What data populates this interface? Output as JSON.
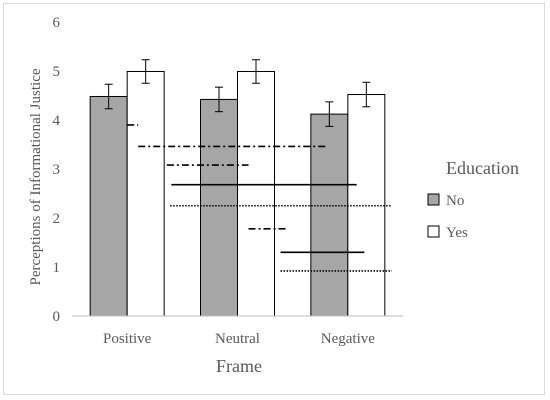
{
  "chart_data": {
    "type": "bar",
    "categories": [
      "Positive",
      "Neutral",
      "Negative"
    ],
    "series": [
      {
        "name": "No",
        "values": [
          4.48,
          4.42,
          4.12
        ],
        "errors": [
          0.25,
          0.25,
          0.25
        ],
        "color": "#a6a6a6"
      },
      {
        "name": "Yes",
        "values": [
          4.99,
          4.99,
          4.52
        ],
        "errors": [
          0.24,
          0.24,
          0.25
        ],
        "color": "#ffffff"
      }
    ],
    "ylabel": "Perceptions of Informational Justice",
    "xlabel": "Frame",
    "ylim": [
      0,
      6
    ],
    "yticks": [
      0,
      1,
      2,
      3,
      4,
      5,
      6
    ],
    "grid": false,
    "legend": {
      "title": "Education",
      "placement": "right"
    },
    "annotations": [
      {
        "style": "dash-dot",
        "from_x": 0.0,
        "to_x": 0.1,
        "y": 3.9
      },
      {
        "style": "dash-dot",
        "from_x": 0.1,
        "to_x": 1.8,
        "y": 3.46
      },
      {
        "style": "dash-dot",
        "from_x": 0.36,
        "to_x": 1.1,
        "y": 3.08
      },
      {
        "style": "solid",
        "from_x": 0.4,
        "to_x": 2.08,
        "y": 2.68
      },
      {
        "style": "dotted",
        "from_x": 0.39,
        "to_x": 2.4,
        "y": 2.25
      },
      {
        "style": "dash-dot",
        "from_x": 1.1,
        "to_x": 1.45,
        "y": 1.78
      },
      {
        "style": "solid",
        "from_x": 1.39,
        "to_x": 2.15,
        "y": 1.3
      },
      {
        "style": "dotted",
        "from_x": 1.39,
        "to_x": 2.4,
        "y": 0.92
      }
    ]
  }
}
